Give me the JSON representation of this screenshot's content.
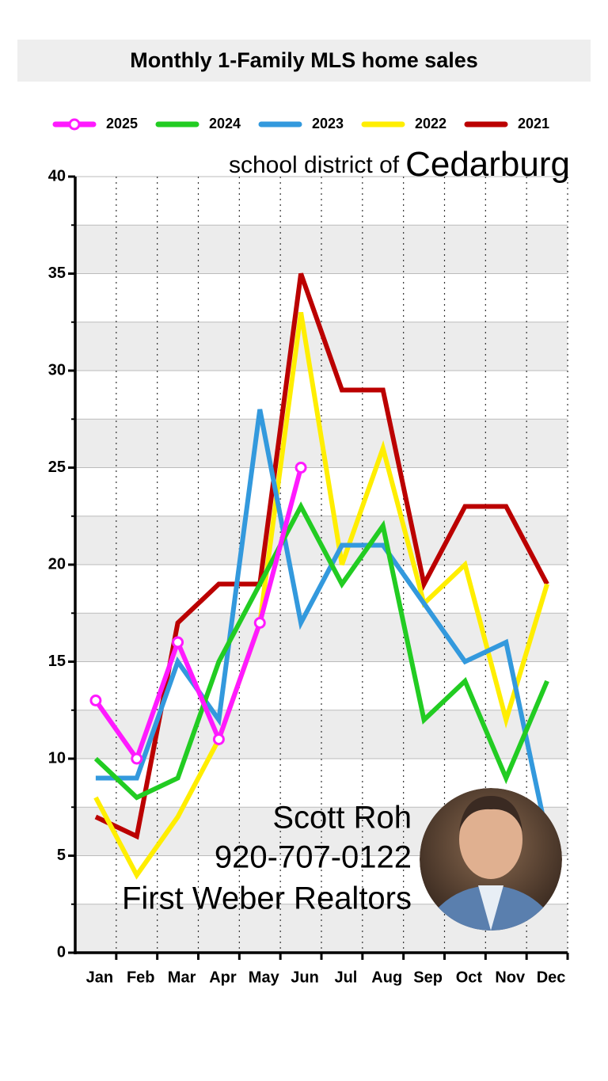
{
  "chart_data": {
    "type": "line",
    "title": "Monthly 1-Family MLS home sales",
    "subtitle": [
      "school district of",
      "Cedarburg"
    ],
    "annotations": [
      "Scott Roh",
      "920-707-0122",
      "First Weber Realtors"
    ],
    "categories": [
      "Jan",
      "Feb",
      "Mar",
      "Apr",
      "May",
      "Jun",
      "Jul",
      "Aug",
      "Sep",
      "Oct",
      "Nov",
      "Dec"
    ],
    "series": [
      {
        "name": "2025",
        "color": "#ff1aff",
        "marker": "circle",
        "values": [
          13,
          10,
          16,
          11,
          17,
          25,
          null,
          null,
          null,
          null,
          null,
          null
        ]
      },
      {
        "name": "2024",
        "color": "#22cc22",
        "values": [
          10,
          8,
          9,
          15,
          19,
          23,
          19,
          22,
          12,
          14,
          9,
          14
        ]
      },
      {
        "name": "2023",
        "color": "#3399dd",
        "values": [
          9,
          9,
          15,
          12,
          28,
          17,
          21,
          21,
          18,
          15,
          16,
          6
        ]
      },
      {
        "name": "2022",
        "color": "#ffee00",
        "values": [
          8,
          4,
          7,
          11,
          17,
          33,
          20,
          26,
          18,
          20,
          12,
          19
        ]
      },
      {
        "name": "2021",
        "color": "#bb0000",
        "values": [
          7,
          6,
          17,
          19,
          19,
          35,
          29,
          29,
          19,
          23,
          23,
          19
        ]
      }
    ],
    "ylim": [
      0,
      40
    ],
    "yticks": [
      0,
      5,
      10,
      15,
      20,
      25,
      30,
      35,
      40
    ],
    "minor_yticks": [
      2.5,
      7.5,
      12.5,
      17.5,
      22.5,
      27.5,
      32.5,
      37.5
    ],
    "grid": true,
    "legend": "top"
  }
}
